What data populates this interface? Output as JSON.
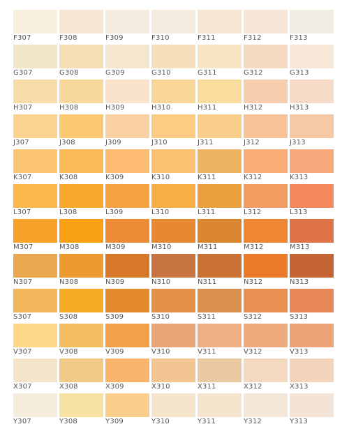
{
  "palette": {
    "rows": [
      {
        "codes": [
          "F307",
          "F308",
          "F309",
          "F310",
          "F311",
          "F312",
          "F313"
        ],
        "colors": [
          "#f7f0de",
          "#f5e7d4",
          "#f5ebe0",
          "#f4ebdf",
          "#f6e7d2",
          "#f6e6d8",
          "#f1ece1"
        ]
      },
      {
        "codes": [
          "G307",
          "G308",
          "G309",
          "G310",
          "G311",
          "G312",
          "G313"
        ],
        "colors": [
          "#f2e6c9",
          "#f5ddb6",
          "#f5e6cf",
          "#f6e0bc",
          "#f8e5c6",
          "#f3dac1",
          "#f6e7d7"
        ]
      },
      {
        "codes": [
          "H307",
          "H308",
          "H309",
          "H310",
          "H311",
          "H312",
          "H313"
        ],
        "colors": [
          "#f8dda8",
          "#f9d89e",
          "#f9e3cb",
          "#f9d798",
          "#f9dd9d",
          "#f6ceaf",
          "#f6dbc8"
        ]
      },
      {
        "codes": [
          "J307",
          "J308",
          "J309",
          "J310",
          "J311",
          "J312",
          "J313"
        ],
        "colors": [
          "#fbd290",
          "#fcca73",
          "#f8d0a3",
          "#fccb84",
          "#f9cd8a",
          "#f7c39a",
          "#f6c9a6"
        ]
      },
      {
        "codes": [
          "K307",
          "K308",
          "K309",
          "K310",
          "K311",
          "K312",
          "K313"
        ],
        "colors": [
          "#fcc673",
          "#fdbb58",
          "#fcba72",
          "#fbc171",
          "#eeb461",
          "#f8ac77",
          "#f8aa7d"
        ]
      },
      {
        "codes": [
          "L307",
          "L308",
          "L309",
          "L310",
          "L311",
          "L312",
          "L313"
        ],
        "colors": [
          "#fab84b",
          "#f9a82c",
          "#f5a340",
          "#f7ae45",
          "#eaa03c",
          "#f39c62",
          "#f6895c"
        ]
      },
      {
        "codes": [
          "M307",
          "M308",
          "M309",
          "M310",
          "M311",
          "M312",
          "M313"
        ],
        "colors": [
          "#f9a22b",
          "#f99f16",
          "#ee8c36",
          "#e68931",
          "#d9862f",
          "#ee8634",
          "#e07346"
        ]
      },
      {
        "codes": [
          "N307",
          "N308",
          "N309",
          "N310",
          "N311",
          "N312",
          "N313"
        ],
        "colors": [
          "#eba850",
          "#ed9b31",
          "#d87829",
          "#c87440",
          "#ca7233",
          "#ec7a2b",
          "#c56433"
        ]
      },
      {
        "codes": [
          "S307",
          "S308",
          "S309",
          "S310",
          "S311",
          "S312",
          "S313"
        ],
        "colors": [
          "#f4b65d",
          "#f6ab26",
          "#e38b2d",
          "#e29045",
          "#db8f4f",
          "#ea8f51",
          "#e88758"
        ]
      },
      {
        "codes": [
          "V307",
          "V308",
          "V309",
          "V310",
          "V311",
          "V312",
          "V313"
        ],
        "colors": [
          "#fdd889",
          "#f3be62",
          "#f3a04a",
          "#e8a474",
          "#eeb084",
          "#eeac7e",
          "#efa378"
        ]
      },
      {
        "codes": [
          "X307",
          "X308",
          "X309",
          "X310",
          "X311",
          "X312",
          "X313"
        ],
        "colors": [
          "#f6e4ca",
          "#f2ca88",
          "#f8b46b",
          "#f3c593",
          "#ebcaa1",
          "#f3d9c0",
          "#f4d4ba"
        ]
      },
      {
        "codes": [
          "Y307",
          "Y308",
          "Y309",
          "Y310",
          "Y311",
          "Y312",
          "Y313"
        ],
        "colors": [
          "#f4eddd",
          "#f7e2a3",
          "#fbcf8b",
          "#f6e4cd",
          "#f6e4ce",
          "#f4e7d9",
          "#f3e4d7"
        ]
      }
    ]
  }
}
